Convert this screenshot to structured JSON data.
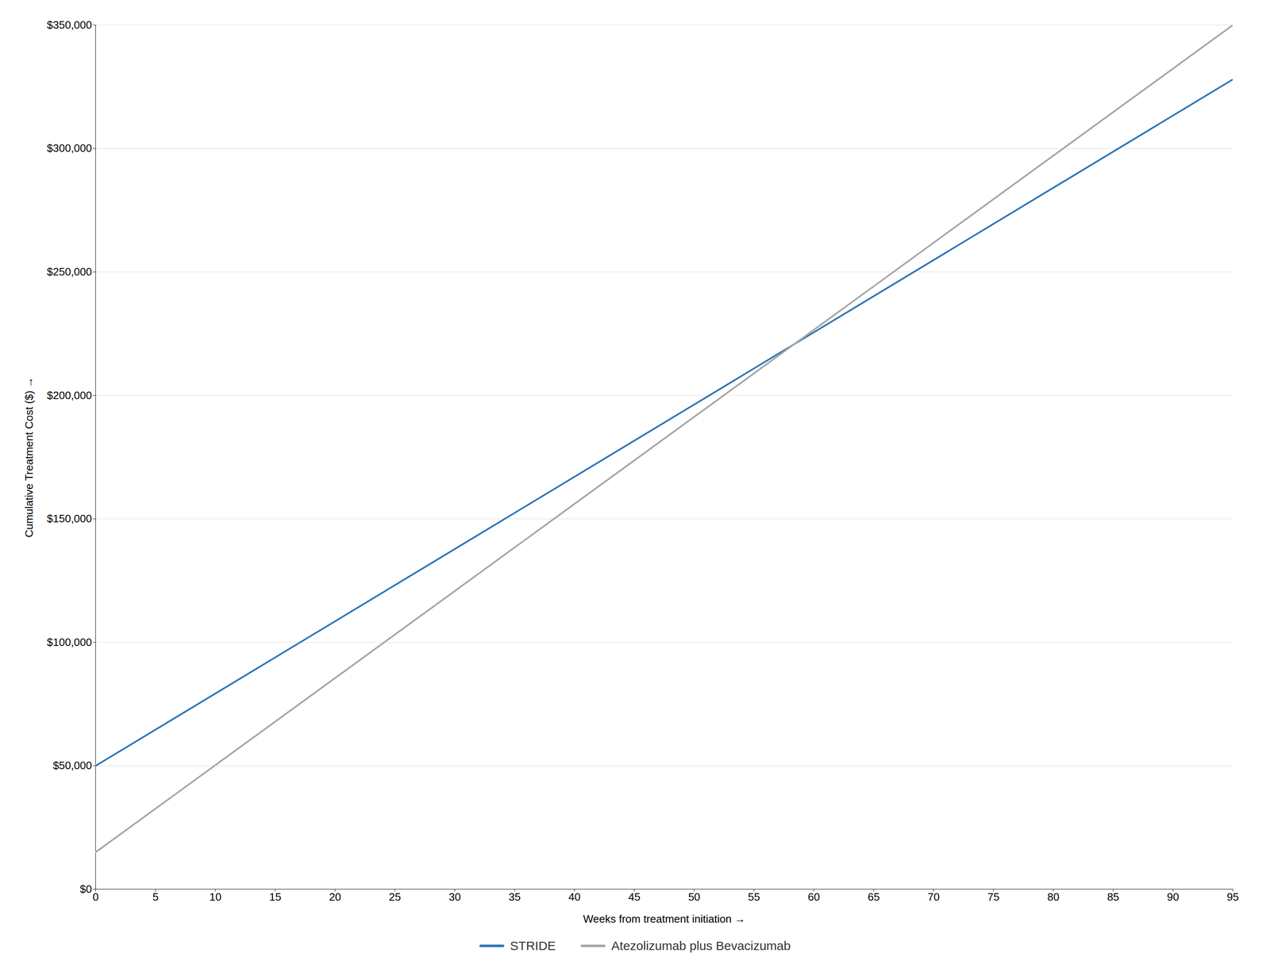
{
  "chart_data": {
    "type": "line",
    "xlabel": "Weeks from treatment initiation",
    "ylabel": "Cumulative Treatment Cost ($)",
    "x": [
      0,
      95
    ],
    "series": [
      {
        "name": "STRIDE",
        "color": "#2E75B6",
        "values": [
          50000,
          328000
        ]
      },
      {
        "name": "Atezolizumab plus Bevacizumab",
        "color": "#A6A6A6",
        "values": [
          15000,
          350000
        ]
      }
    ],
    "xlim": [
      0,
      95
    ],
    "ylim": [
      0,
      350000
    ],
    "xticks": [
      0,
      5,
      10,
      15,
      20,
      25,
      30,
      35,
      40,
      45,
      50,
      55,
      60,
      65,
      70,
      75,
      80,
      85,
      90,
      95
    ],
    "yticks": [
      {
        "value": 0,
        "label": "$0"
      },
      {
        "value": 50000,
        "label": "$50,000"
      },
      {
        "value": 100000,
        "label": "$100,000"
      },
      {
        "value": 150000,
        "label": "$150,000"
      },
      {
        "value": 200000,
        "label": "$200,000"
      },
      {
        "value": 250000,
        "label": "$250,000"
      },
      {
        "value": 300000,
        "label": "$300,000"
      },
      {
        "value": 350000,
        "label": "$350,000"
      }
    ],
    "grid": "y",
    "legend": "bottom"
  }
}
